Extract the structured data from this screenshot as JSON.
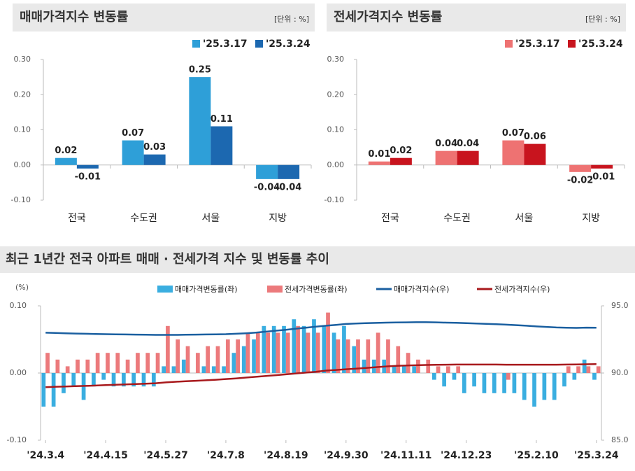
{
  "chart_data": [
    {
      "type": "bar",
      "title": "매매가격지수 변동률",
      "unit": "[단위 : %]",
      "categories": [
        "전국",
        "수도권",
        "서울",
        "지방"
      ],
      "series": [
        {
          "name": "'25.3.17",
          "color": "#2e9fd8",
          "values": [
            0.02,
            0.07,
            0.25,
            -0.04
          ]
        },
        {
          "name": "'25.3.24",
          "color": "#1c68b0",
          "values": [
            -0.01,
            0.03,
            0.11,
            -0.04
          ]
        }
      ],
      "ylim": [
        -0.1,
        0.3
      ],
      "yticks": [
        {
          "value": -0.1,
          "label": "-0.10"
        },
        {
          "value": 0,
          "label": "0.00"
        },
        {
          "value": 0.1,
          "label": "0.10"
        },
        {
          "value": 0.2,
          "label": "0.20"
        },
        {
          "value": 0.3,
          "label": "0.30"
        }
      ]
    },
    {
      "type": "bar",
      "title": "전세가격지수 변동률",
      "unit": "[단위 : %]",
      "categories": [
        "전국",
        "수도권",
        "서울",
        "지방"
      ],
      "series": [
        {
          "name": "'25.3.17",
          "color": "#ee7272",
          "values": [
            0.01,
            0.04,
            0.07,
            -0.02
          ]
        },
        {
          "name": "'25.3.24",
          "color": "#c8141e",
          "values": [
            0.02,
            0.04,
            0.06,
            -0.01
          ]
        }
      ],
      "ylim": [
        -0.1,
        0.3
      ],
      "yticks": [
        {
          "value": -0.1,
          "label": "-0.10"
        },
        {
          "value": 0,
          "label": "0.00"
        },
        {
          "value": 0.1,
          "label": "0.10"
        },
        {
          "value": 0.2,
          "label": "0.20"
        },
        {
          "value": 0.3,
          "label": "0.30"
        }
      ]
    },
    {
      "type": "combo",
      "title": "최근 1년간 전국 아파트 매매 · 전세가격 지수 및 변동률 추이",
      "y_label": "(%)",
      "categories": [
        "'24.3.4",
        null,
        null,
        null,
        null,
        null,
        "'24.4.15",
        null,
        null,
        null,
        null,
        null,
        "'24.5.27",
        null,
        null,
        null,
        null,
        null,
        "'24.7.8",
        null,
        null,
        null,
        null,
        null,
        "'24.8.19",
        null,
        null,
        null,
        null,
        null,
        "'24.9.30",
        null,
        null,
        null,
        null,
        null,
        "'24.11.11",
        null,
        null,
        null,
        null,
        null,
        "'24.12.23",
        null,
        null,
        null,
        null,
        null,
        null,
        "'25.2.10",
        null,
        null,
        null,
        null,
        null,
        "'25.3.24"
      ],
      "series": [
        {
          "name": "매매가격변동률(좌)",
          "type": "bar",
          "color": "#3aaee0",
          "values": [
            -0.05,
            -0.05,
            -0.03,
            -0.02,
            -0.04,
            -0.02,
            -0.01,
            -0.02,
            -0.02,
            -0.02,
            -0.02,
            -0.02,
            0.01,
            0.01,
            0.02,
            0.0,
            0.01,
            0.01,
            0.01,
            0.03,
            0.04,
            0.05,
            0.07,
            0.07,
            0.07,
            0.08,
            0.07,
            0.08,
            0.07,
            0.06,
            0.07,
            0.04,
            0.02,
            0.02,
            0.02,
            0.01,
            0.01,
            0.01,
            0.0,
            -0.01,
            -0.02,
            -0.01,
            -0.03,
            -0.02,
            -0.03,
            -0.03,
            -0.03,
            -0.03,
            -0.04,
            -0.05,
            -0.04,
            -0.04,
            -0.02,
            -0.01,
            0.02,
            -0.01
          ]
        },
        {
          "name": "전세가격변동률(좌)",
          "type": "bar",
          "color": "#ec7a7c",
          "values": [
            0.03,
            0.02,
            0.01,
            0.02,
            0.02,
            0.03,
            0.03,
            0.03,
            0.02,
            0.03,
            0.03,
            0.03,
            0.07,
            0.05,
            0.04,
            0.03,
            0.04,
            0.04,
            0.05,
            0.05,
            0.06,
            0.06,
            0.06,
            0.06,
            0.06,
            0.07,
            0.06,
            0.06,
            0.09,
            0.05,
            0.05,
            0.05,
            0.05,
            0.06,
            0.05,
            0.04,
            0.03,
            0.02,
            0.02,
            0.01,
            0.01,
            0.01,
            0.0,
            0.0,
            0.0,
            0.0,
            -0.01,
            0.0,
            0.0,
            0.0,
            0.0,
            0.0,
            0.01,
            0.01,
            0.01,
            0.01
          ]
        },
        {
          "name": "매매가격지수(우)",
          "type": "line",
          "axis": "y2",
          "color": "#1a5fa0",
          "values": [
            93.0,
            92.98,
            92.96,
            92.94,
            92.92,
            92.9,
            92.89,
            92.88,
            92.87,
            92.86,
            92.85,
            92.84,
            92.84,
            92.84,
            92.85,
            92.86,
            92.87,
            92.88,
            92.89,
            92.92,
            92.96,
            93.01,
            93.08,
            93.15,
            93.22,
            93.3,
            93.37,
            93.45,
            93.52,
            93.58,
            93.65,
            93.69,
            93.71,
            93.73,
            93.75,
            93.76,
            93.77,
            93.78,
            93.78,
            93.77,
            93.75,
            93.74,
            93.71,
            93.69,
            93.66,
            93.63,
            93.6,
            93.56,
            93.52,
            93.47,
            93.43,
            93.39,
            93.37,
            93.36,
            93.38,
            93.37
          ]
        },
        {
          "name": "전세가격지수(우)",
          "type": "line",
          "axis": "y2",
          "color": "#a8191c",
          "values": [
            88.95,
            88.98,
            89.0,
            89.02,
            89.04,
            89.07,
            89.1,
            89.13,
            89.15,
            89.18,
            89.21,
            89.24,
            89.3,
            89.35,
            89.39,
            89.42,
            89.46,
            89.5,
            89.55,
            89.6,
            89.66,
            89.72,
            89.78,
            89.84,
            89.9,
            89.97,
            90.03,
            90.09,
            90.18,
            90.23,
            90.28,
            90.33,
            90.38,
            90.44,
            90.49,
            90.53,
            90.56,
            90.58,
            90.6,
            90.61,
            90.62,
            90.63,
            90.63,
            90.63,
            90.63,
            90.63,
            90.62,
            90.62,
            90.62,
            90.62,
            90.62,
            90.62,
            90.63,
            90.64,
            90.65,
            90.66
          ]
        }
      ],
      "ylim": [
        -0.1,
        0.1
      ],
      "yticks": [
        {
          "value": -0.1,
          "label": "-0.10"
        },
        {
          "value": 0,
          "label": "0.00"
        },
        {
          "value": 0.1,
          "label": "0.10"
        }
      ],
      "y2lim": [
        85,
        95
      ],
      "y2ticks": [
        {
          "value": 85,
          "label": "85.0"
        },
        {
          "value": 90,
          "label": "90.0"
        },
        {
          "value": 95,
          "label": "95.0"
        }
      ]
    }
  ]
}
